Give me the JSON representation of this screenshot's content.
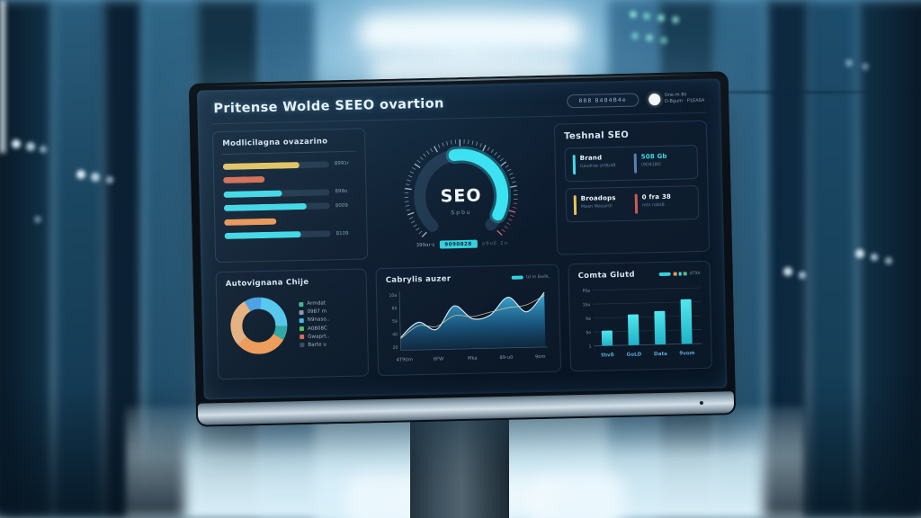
{
  "header": {
    "title": "Pritense Wolde SEEO ovartion",
    "pill_label": "888 8484B4e",
    "avatar_line1": "Gne-m 8e",
    "avatar_line2": "D-Bgum · P1EASA"
  },
  "panels": {
    "keywords": {
      "title": "Modlicilagna ovazarino"
    },
    "gauge": {
      "caption_left": "399ar·s",
      "caption_chip": "9090828",
      "caption_right": "a9oE 2n"
    },
    "technical": {
      "title": "Teshnal SEO",
      "cards": [
        {
          "items": [
            {
              "accent": "#3fd9e6",
              "title": "Brand",
              "title_color": "#eef5fb",
              "subtitle": "Gasdrae sh9b4B"
            },
            {
              "accent": "#5b7fb5",
              "title": "508 Gb",
              "title_color": "#3fd9e6",
              "subtitle": "(9O81BO"
            }
          ]
        },
        {
          "items": [
            {
              "accent": "#e8c158",
              "title": "Broadops",
              "title_color": "#eef5fb",
              "subtitle": "Maan Wassirdr"
            },
            {
              "accent": "#cf5a52",
              "title": "0 fra 38",
              "title_color": "#eef5fb",
              "subtitle": "mtn ro8sB"
            }
          ]
        }
      ]
    },
    "donut": {
      "title": "Autovignana Chije"
    },
    "area": {
      "title": "Cabrylis auzer",
      "legend_text": "td m Bw9L"
    },
    "bars": {
      "title": "Comta Glutd",
      "legend_text": "4T9A",
      "legend_squares": [
        "#f09552",
        "#3fd9e6",
        "#4cc08a"
      ]
    }
  },
  "chart_data": [
    {
      "id": "keyword_bars",
      "type": "bar",
      "orientation": "horizontal",
      "values": [
        72,
        39,
        55,
        78,
        49,
        72
      ],
      "colors": [
        "#e6c35c",
        "#d96a50",
        "#3fd9e6",
        "#3fd9e6",
        "#ef9552",
        "#3fd9e6"
      ],
      "tracks": [
        true,
        false,
        true,
        true,
        false,
        true
      ],
      "labels": [
        "8991r",
        "",
        "898o",
        "8009",
        "",
        "8109"
      ]
    },
    {
      "id": "seo_gauge",
      "type": "gauge",
      "label": "SEO",
      "sublabel": "Spbu",
      "tick_start_deg": -135,
      "tick_end_deg": 135,
      "arc_start_deg": -8,
      "arc_end_deg": 118,
      "red_tick_from_deg": 98,
      "arc_color": "#3ae2f2"
    },
    {
      "id": "share_donut",
      "type": "pie",
      "start_deg": -30,
      "segments": [
        {
          "value": 10,
          "color": "#4a9fe0"
        },
        {
          "value": 24,
          "color": "#53c7ee"
        },
        {
          "value": 8,
          "color": "#2ba8a0"
        },
        {
          "value": 30,
          "color": "#f09a55"
        },
        {
          "value": 28,
          "color": "#e8b07c"
        }
      ],
      "legend": [
        {
          "color": "#3db98a",
          "label": "Armdat"
        },
        {
          "color": "#8a97a5",
          "label": "0987 m"
        },
        {
          "color": "#42b8e8",
          "label": "N9naso.."
        },
        {
          "color": "#4cc05a",
          "label": "A0808C"
        },
        {
          "color": "#d96b52",
          "label": "Gwaprt.."
        },
        {
          "color": "#3a4a58",
          "label": "Barte u"
        }
      ]
    },
    {
      "id": "traffic_area",
      "type": "area",
      "x_labels": [
        "4T90m",
        "6FW",
        "Mka",
        "89-u0",
        "9om"
      ],
      "y_labels": [
        "10a",
        "80",
        "59",
        "40",
        "20"
      ],
      "series": [
        {
          "name": "main",
          "values": [
            22,
            48,
            35,
            75,
            52,
            58,
            88,
            62,
            95
          ]
        },
        {
          "name": "secondary",
          "values": [
            20,
            42,
            40,
            58,
            56,
            63,
            70,
            74,
            90
          ]
        }
      ],
      "line_color": "#cfe4f0",
      "secondary_color": "#d8c9a0",
      "fill_top": "#3fb4e0",
      "fill_bottom": "#12354f"
    },
    {
      "id": "content_bars",
      "type": "bar",
      "orientation": "vertical",
      "values": [
        27,
        55,
        60,
        80
      ],
      "x_labels": [
        "thv8",
        "GoLD",
        "Data",
        "9vom"
      ],
      "y_labels": [
        "P0a",
        "15u",
        "9a",
        "5o",
        "1"
      ],
      "bar_color_top": "#52e6ee",
      "bar_color_bottom": "#20b2c8"
    }
  ]
}
